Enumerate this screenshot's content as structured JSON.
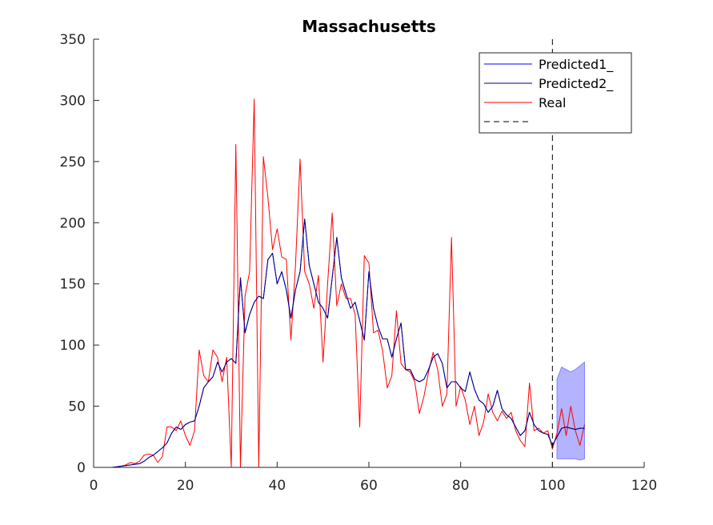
{
  "chart_data": {
    "type": "line",
    "title": "Massachusetts",
    "xlabel": "",
    "ylabel": "",
    "xlim": [
      0,
      120
    ],
    "ylim": [
      0,
      350
    ],
    "xticks": [
      0,
      20,
      40,
      60,
      80,
      100,
      120
    ],
    "yticks": [
      0,
      50,
      100,
      150,
      200,
      250,
      300,
      350
    ],
    "grid": false,
    "legend": {
      "placement": "top-right",
      "entries": [
        "Predicted1_",
        "Predicted2_",
        "Real",
        ""
      ]
    },
    "vline_x": 100,
    "series": [
      {
        "name": "Predicted1_",
        "color": "#0000ff",
        "x": [
          1,
          2,
          3,
          4,
          5,
          6,
          7,
          8,
          9,
          10,
          11,
          12,
          13,
          14,
          15,
          16,
          17,
          18,
          19,
          20,
          21,
          22,
          23,
          24,
          25,
          26,
          27,
          28,
          29,
          30,
          31,
          32,
          33,
          34,
          35,
          36,
          37,
          38,
          39,
          40,
          41,
          42,
          43,
          44,
          45,
          46,
          47,
          48,
          49,
          50,
          51,
          52,
          53,
          54,
          55,
          56,
          57,
          58,
          59,
          60,
          61,
          62,
          63,
          64,
          65,
          66,
          67,
          68,
          69,
          70,
          71,
          72,
          73,
          74,
          75,
          76,
          77,
          78,
          79,
          80,
          81,
          82,
          83,
          84,
          85,
          86,
          87,
          88,
          89,
          90,
          91,
          92,
          93,
          94,
          95,
          96,
          97,
          98,
          99,
          100,
          101,
          102,
          103,
          104,
          105,
          106,
          107
        ],
        "values": [
          0,
          0,
          0,
          0,
          0.5,
          1,
          1.5,
          2,
          2.5,
          3,
          5,
          8,
          10,
          13,
          16,
          20,
          28,
          33,
          31,
          35,
          37,
          38,
          50,
          65,
          70,
          74,
          86,
          78,
          86,
          89,
          85,
          155,
          110,
          125,
          135,
          140,
          138,
          170,
          175,
          150,
          160,
          145,
          122,
          145,
          160,
          203,
          165,
          150,
          135,
          130,
          122,
          155,
          188,
          155,
          142,
          130,
          135,
          120,
          104,
          160,
          130,
          115,
          105,
          105,
          90,
          105,
          118,
          80,
          80,
          72,
          70,
          72,
          80,
          90,
          93,
          85,
          65,
          70,
          70,
          65,
          62,
          78,
          64,
          55,
          52,
          45,
          50,
          63,
          48,
          43,
          40,
          33,
          26,
          30,
          45,
          35,
          30,
          28,
          27,
          18,
          25,
          32,
          33,
          32,
          31,
          32,
          32
        ]
      },
      {
        "name": "Predicted2_",
        "color": "#00007f",
        "x": [
          1,
          2,
          3,
          4,
          5,
          6,
          7,
          8,
          9,
          10,
          11,
          12,
          13,
          14,
          15,
          16,
          17,
          18,
          19,
          20,
          21,
          22,
          23,
          24,
          25,
          26,
          27,
          28,
          29,
          30,
          31,
          32,
          33,
          34,
          35,
          36,
          37,
          38,
          39,
          40,
          41,
          42,
          43,
          44,
          45,
          46,
          47,
          48,
          49,
          50,
          51,
          52,
          53,
          54,
          55,
          56,
          57,
          58,
          59,
          60,
          61,
          62,
          63,
          64,
          65,
          66,
          67,
          68,
          69,
          70,
          71,
          72,
          73,
          74,
          75,
          76,
          77,
          78,
          79,
          80,
          81,
          82,
          83,
          84,
          85,
          86,
          87,
          88,
          89,
          90,
          91,
          92,
          93,
          94,
          95,
          96,
          97,
          98,
          99,
          100,
          101,
          102,
          103,
          104,
          105,
          106,
          107
        ],
        "values": [
          0,
          0,
          0,
          0,
          0.5,
          1,
          1.5,
          2,
          2.5,
          3,
          5,
          8,
          10,
          13,
          16,
          20,
          28,
          33,
          31,
          35,
          37,
          38,
          50,
          65,
          70,
          74,
          86,
          78,
          86,
          89,
          85,
          155,
          110,
          125,
          135,
          140,
          138,
          170,
          175,
          150,
          160,
          145,
          122,
          145,
          160,
          203,
          165,
          150,
          135,
          130,
          122,
          155,
          188,
          155,
          142,
          130,
          135,
          120,
          104,
          160,
          130,
          115,
          105,
          105,
          90,
          105,
          118,
          80,
          80,
          72,
          70,
          72,
          80,
          90,
          93,
          85,
          65,
          70,
          70,
          65,
          62,
          78,
          64,
          55,
          52,
          45,
          50,
          63,
          48,
          43,
          40,
          33,
          26,
          30,
          45,
          35,
          30,
          28,
          27,
          18,
          25,
          32,
          33,
          32,
          31,
          32,
          32
        ]
      },
      {
        "name": "Real",
        "color": "#ff0000",
        "x": [
          1,
          2,
          3,
          4,
          5,
          6,
          7,
          8,
          9,
          10,
          11,
          12,
          13,
          14,
          15,
          16,
          17,
          18,
          19,
          20,
          21,
          22,
          23,
          24,
          25,
          26,
          27,
          28,
          29,
          30,
          31,
          32,
          33,
          34,
          35,
          36,
          37,
          38,
          39,
          40,
          41,
          42,
          43,
          44,
          45,
          46,
          47,
          48,
          49,
          50,
          51,
          52,
          53,
          54,
          55,
          56,
          57,
          58,
          59,
          60,
          61,
          62,
          63,
          64,
          65,
          66,
          67,
          68,
          69,
          70,
          71,
          72,
          73,
          74,
          75,
          76,
          77,
          78,
          79,
          80,
          81,
          82,
          83,
          84,
          85,
          86,
          87,
          88,
          89,
          90,
          91,
          92,
          93,
          94,
          95,
          96,
          97,
          98,
          99,
          100,
          101,
          102,
          103,
          104,
          105,
          106,
          107
        ],
        "values": [
          0,
          0,
          0,
          0,
          0,
          1,
          2,
          4,
          3,
          5,
          10,
          11,
          10,
          4,
          9,
          33,
          33,
          30,
          38,
          26,
          18,
          30,
          96,
          75,
          70,
          96,
          90,
          70,
          90,
          0,
          264,
          0,
          140,
          160,
          301,
          0,
          254,
          220,
          178,
          195,
          172,
          170,
          104,
          165,
          252,
          160,
          150,
          130,
          157,
          86,
          150,
          208,
          132,
          150,
          138,
          138,
          125,
          33,
          173,
          167,
          110,
          112,
          95,
          65,
          75,
          128,
          85,
          80,
          78,
          70,
          44,
          58,
          78,
          94,
          80,
          50,
          60,
          188,
          50,
          66,
          55,
          35,
          50,
          26,
          37,
          60,
          45,
          38,
          46,
          40,
          45,
          30,
          22,
          17,
          69,
          30,
          32,
          28,
          30,
          15,
          28,
          48,
          26,
          50,
          30,
          18,
          35
        ]
      }
    ],
    "prediction_band": {
      "color": "#b3b3ff",
      "x": [
        101,
        102,
        103,
        104,
        105,
        106,
        107
      ],
      "upper": [
        72,
        82,
        80,
        78,
        80,
        83,
        86
      ],
      "lower": [
        7,
        7,
        7,
        7,
        7,
        6,
        7
      ]
    }
  }
}
